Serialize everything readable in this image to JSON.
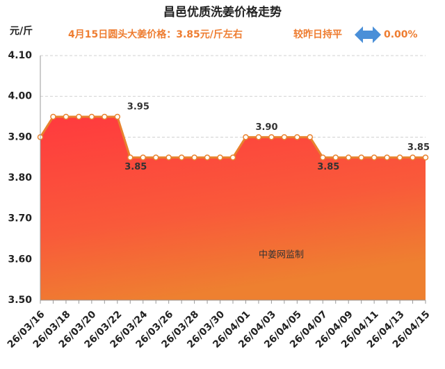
{
  "chart_data": {
    "type": "line",
    "title": "昌邑优质洗姜价格走势",
    "subtitle": "4月15日圆头大姜价格：3.85元/斤左右",
    "change_text": "较昨日持平",
    "change_value": "0.00%",
    "y_label": "元/斤",
    "watermark": "中姜网监制",
    "categories": [
      "26/03/16",
      null,
      "26/03/18",
      null,
      "26/03/20",
      null,
      "26/03/22",
      null,
      "26/03/24",
      null,
      "26/03/26",
      null,
      "26/03/28",
      null,
      "26/03/30",
      null,
      "26/04/01",
      null,
      "26/04/03",
      null,
      "26/04/05",
      null,
      "26/04/07",
      null,
      "26/04/09",
      null,
      "26/04/11",
      null,
      "26/04/13",
      null,
      "26/04/15"
    ],
    "series": [
      {
        "color": "#e8822e",
        "values": [
          3.9,
          3.95,
          3.95,
          3.95,
          3.95,
          3.95,
          3.95,
          3.85,
          3.85,
          3.85,
          3.85,
          3.85,
          3.85,
          3.85,
          3.85,
          3.85,
          3.9,
          3.9,
          3.9,
          3.9,
          3.9,
          3.9,
          3.85,
          3.85,
          3.85,
          3.85,
          3.85,
          3.85,
          3.85,
          3.85,
          3.85
        ],
        "value_labels": [
          null,
          null,
          null,
          null,
          null,
          null,
          "3.95",
          "3.85",
          null,
          null,
          null,
          null,
          null,
          null,
          null,
          null,
          "3.90",
          null,
          null,
          null,
          null,
          null,
          "3.85",
          null,
          null,
          null,
          null,
          null,
          null,
          null,
          "3.85"
        ]
      }
    ],
    "ylim": [
      3.5,
      4.1
    ],
    "yticks": [
      {
        "value": 3.5,
        "label": "3.50"
      },
      {
        "value": 3.6,
        "label": "3.60"
      },
      {
        "value": 3.7,
        "label": "3.70"
      },
      {
        "value": 3.8,
        "label": "3.80"
      },
      {
        "value": 3.9,
        "label": "3.90"
      },
      {
        "value": 4.0,
        "label": "4.00"
      },
      {
        "value": 4.1,
        "label": "4.10"
      }
    ],
    "grid": true
  }
}
